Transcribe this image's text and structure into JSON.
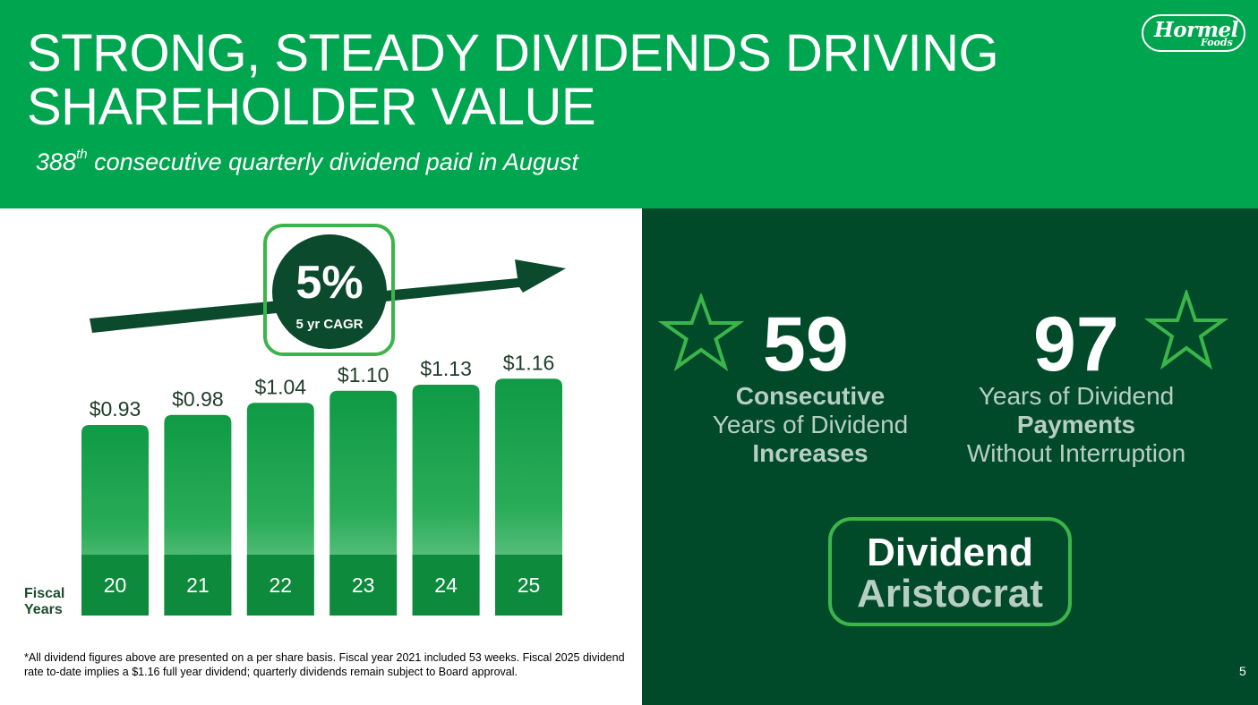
{
  "header": {
    "title": "STRONG, STEADY DIVIDENDS DRIVING SHAREHOLDER VALUE",
    "subtitle_number": "388",
    "subtitle_sup": "th",
    "subtitle_rest": " consecutive quarterly dividend paid in August"
  },
  "logo": {
    "line1": "Hormel",
    "line2": "Foods"
  },
  "cagr": {
    "value": "5%",
    "label": "5 yr CAGR"
  },
  "fiscal_label_line1": "Fiscal",
  "fiscal_label_line2": "Years",
  "chart_data": {
    "type": "bar",
    "categories": [
      "20",
      "21",
      "22",
      "23",
      "24",
      "25"
    ],
    "values": [
      0.93,
      0.98,
      1.04,
      1.1,
      1.13,
      1.16
    ],
    "data_labels": [
      "$0.93",
      "$0.98",
      "$1.04",
      "$1.10",
      "$1.13",
      "$1.16"
    ],
    "xlabel": "Fiscal Years",
    "ylabel": "",
    "title": "",
    "grid": false,
    "colors": {
      "bar": "#1aa24b",
      "bar_top": "#0f9a45",
      "bar_fade": "#7ed09a",
      "base": "#0e8a3d",
      "arrow": "#0b4a2c"
    }
  },
  "stats": {
    "left": {
      "number": "59",
      "line1": "Consecutive",
      "line2": "Years of Dividend",
      "line3": "Increases"
    },
    "right": {
      "number": "97",
      "line1": "Years of Dividend",
      "line2": "Payments",
      "line3": "Without Interruption"
    }
  },
  "badge": {
    "line1": "Dividend",
    "line2": "Aristocrat"
  },
  "footnote": "*All dividend figures above are presented on a per share basis. Fiscal year 2021 included 53 weeks. Fiscal 2025 dividend rate to-date implies a $1.16 full year dividend; quarterly dividends remain subject to Board approval.",
  "page_number": "5",
  "colors": {
    "brand_green": "#00a54f",
    "dark_green": "#004a2a",
    "accent_green": "#3bb54a"
  }
}
